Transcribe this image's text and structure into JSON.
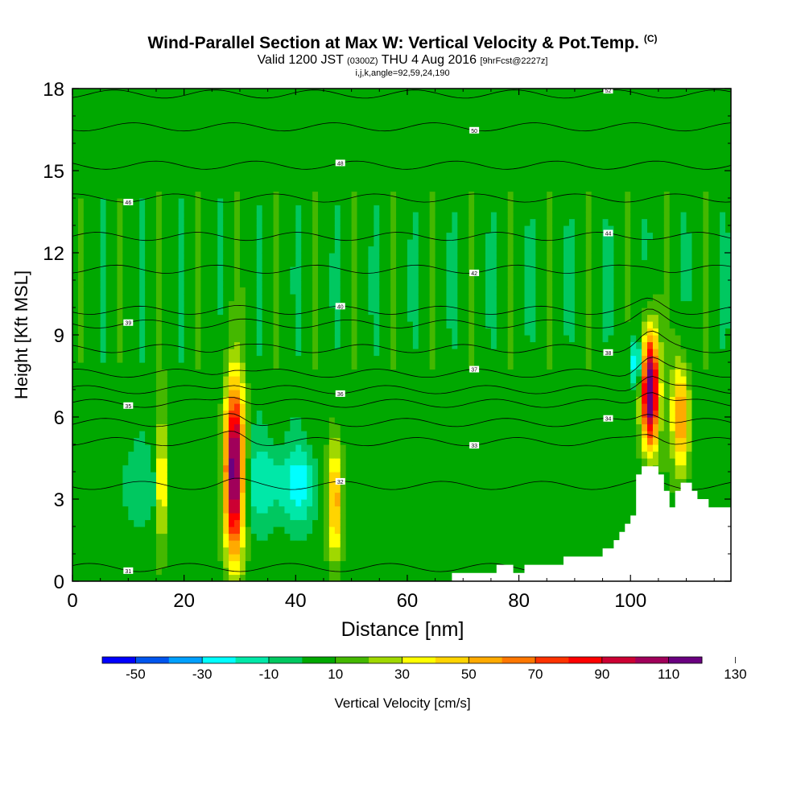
{
  "title": {
    "main": "Wind-Parallel Section at Max W: Vertical Velocity & Pot.Temp.",
    "flag": "(C)",
    "valid_prefix": "Valid 1200 JST",
    "valid_utc": "(0300Z)",
    "valid_date": "THU 4 Aug 2016",
    "forecast": "[9hrFcst@2227z]",
    "params": "i,j,k,angle=92,59,24,190"
  },
  "colorbar": {
    "label": "Vertical Velocity [cm/s]",
    "tick_labels": [
      "-50",
      "-30",
      "-10",
      "10",
      "30",
      "50",
      "70",
      "90",
      "110",
      "130"
    ],
    "colors": [
      "#0000ff",
      "#0055ee",
      "#00a0ff",
      "#00ffff",
      "#00e8a8",
      "#00c860",
      "#00a800",
      "#44b800",
      "#a0d800",
      "#ffff00",
      "#ffd400",
      "#ffaa00",
      "#ff7700",
      "#ff3300",
      "#ff0000",
      "#cc0033",
      "#a0005a",
      "#6a0080"
    ],
    "levels": [
      -60,
      -50,
      -40,
      -30,
      -20,
      -10,
      0,
      10,
      20,
      30,
      40,
      50,
      60,
      70,
      80,
      90,
      100,
      110,
      120,
      130,
      140
    ]
  },
  "chart_data": {
    "type": "heatmap",
    "xlabel": "Distance [nm]",
    "ylabel": "Height [Kft MSL]",
    "xlim": [
      0,
      118
    ],
    "ylim": [
      0,
      18
    ],
    "x_ticks": [
      0,
      20,
      40,
      60,
      80,
      100
    ],
    "y_ticks": [
      0,
      3,
      6,
      9,
      12,
      15,
      18
    ],
    "background_value": 5,
    "w_features": [
      {
        "x": 16,
        "z": 3.6,
        "half_width": 0.8,
        "half_height": 2.3,
        "w": 45
      },
      {
        "x": 29,
        "z": 4.0,
        "half_width": 1.8,
        "half_height": 3.1,
        "w": 120
      },
      {
        "x": 47,
        "z": 3.0,
        "half_width": 1.3,
        "half_height": 2.2,
        "w": 55
      },
      {
        "x": 103.5,
        "z": 7.0,
        "half_width": 1.5,
        "half_height": 2.1,
        "w": 130
      },
      {
        "x": 109,
        "z": 6.0,
        "half_width": 1.6,
        "half_height": 2.0,
        "w": 60
      },
      {
        "x": 34,
        "z": 3.6,
        "half_width": 5.0,
        "half_height": 1.6,
        "w": -22
      },
      {
        "x": 41,
        "z": 3.5,
        "half_width": 3.0,
        "half_height": 1.4,
        "w": -28
      },
      {
        "x": 12,
        "z": 3.5,
        "half_width": 4.5,
        "half_height": 1.4,
        "w": -12
      },
      {
        "x": 101,
        "z": 8.0,
        "half_width": 1.2,
        "half_height": 0.9,
        "w": -40
      }
    ],
    "theta_isentropes": [
      {
        "z": 0.5,
        "label": "31"
      },
      {
        "z": 3.5,
        "label": "32"
      },
      {
        "z": 5.1,
        "label": "33"
      },
      {
        "z": 5.8,
        "label": "34"
      },
      {
        "z": 6.5,
        "label": "35"
      },
      {
        "z": 7.0,
        "label": "36"
      },
      {
        "z": 7.6,
        "label": "37"
      },
      {
        "z": 8.5,
        "label": "38"
      },
      {
        "z": 9.4,
        "label": "39"
      },
      {
        "z": 9.9,
        "label": "40"
      },
      {
        "z": 11.4,
        "label": "42"
      },
      {
        "z": 12.6,
        "label": "44"
      },
      {
        "z": 14.0,
        "label": "46"
      },
      {
        "z": 15.2,
        "label": "48"
      },
      {
        "z": 16.6,
        "label": "50"
      },
      {
        "z": 17.8,
        "label": "52"
      }
    ],
    "terrain": [
      [
        0,
        0
      ],
      [
        68,
        0
      ],
      [
        68,
        0.3
      ],
      [
        76,
        0.3
      ],
      [
        76,
        0.6
      ],
      [
        79,
        0.6
      ],
      [
        79,
        0.3
      ],
      [
        81,
        0.3
      ],
      [
        81,
        0.6
      ],
      [
        88,
        0.6
      ],
      [
        88,
        0.9
      ],
      [
        95,
        0.9
      ],
      [
        95,
        1.2
      ],
      [
        97,
        1.2
      ],
      [
        97,
        1.5
      ],
      [
        98,
        1.5
      ],
      [
        98,
        1.8
      ],
      [
        99,
        1.8
      ],
      [
        99,
        2.1
      ],
      [
        100,
        2.1
      ],
      [
        100,
        2.4
      ],
      [
        101,
        2.4
      ],
      [
        101,
        3.9
      ],
      [
        102,
        3.9
      ],
      [
        102,
        4.2
      ],
      [
        105,
        4.2
      ],
      [
        105,
        3.9
      ],
      [
        106,
        3.9
      ],
      [
        106,
        3.3
      ],
      [
        107,
        3.3
      ],
      [
        107,
        2.7
      ],
      [
        108,
        2.7
      ],
      [
        108,
        3.3
      ],
      [
        109,
        3.3
      ],
      [
        109,
        3.6
      ],
      [
        111,
        3.6
      ],
      [
        111,
        3.3
      ],
      [
        112,
        3.3
      ],
      [
        112,
        3.0
      ],
      [
        114,
        3.0
      ],
      [
        114,
        2.7
      ],
      [
        118,
        2.7
      ],
      [
        118,
        0
      ]
    ]
  }
}
